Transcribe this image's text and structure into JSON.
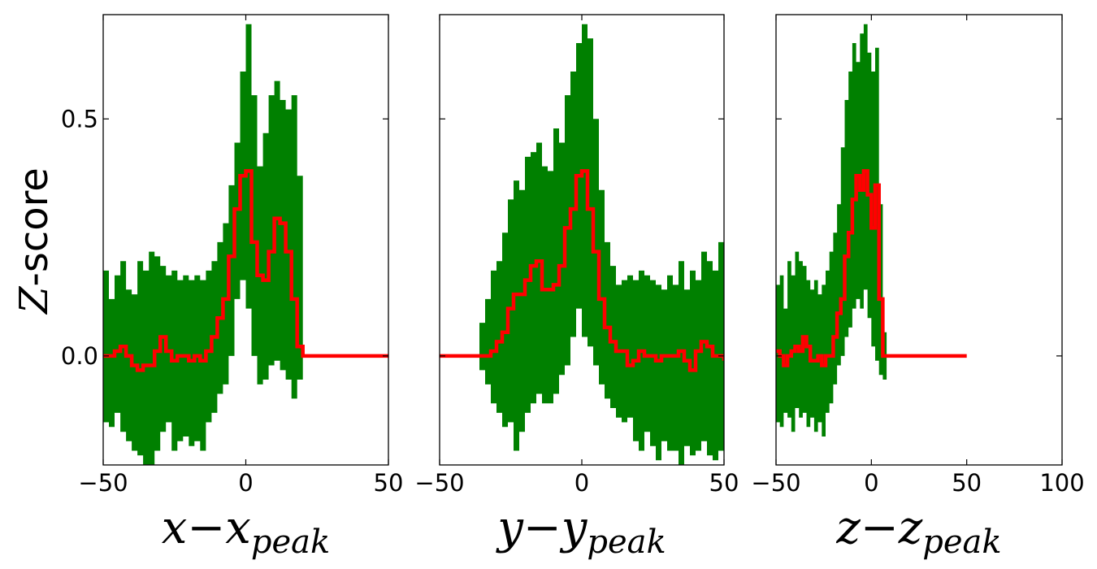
{
  "chart_data": {
    "type": "area",
    "y_axis": {
      "label_var": "Z",
      "label_rest": "-score",
      "ylim": [
        -0.23,
        0.72
      ],
      "ticks": [
        0.0,
        0.5
      ],
      "tick_labels": [
        "0.0",
        "0.5"
      ]
    },
    "colors": {
      "band": "#008000",
      "mean": "#ff0000"
    },
    "panels": [
      {
        "xlabel_var": "x−x",
        "xlabel_sub": "peak",
        "xlim": [
          -50,
          50
        ],
        "xticks": [
          -50,
          0,
          50
        ],
        "xtick_labels": [
          "−50",
          "0",
          "50"
        ],
        "x": [
          -50,
          -48,
          -46,
          -44,
          -42,
          -40,
          -38,
          -36,
          -34,
          -32,
          -30,
          -28,
          -26,
          -24,
          -22,
          -20,
          -18,
          -16,
          -14,
          -12,
          -10,
          -8,
          -6,
          -4,
          -2,
          0,
          2,
          4,
          6,
          8,
          10,
          12,
          14,
          16,
          18,
          20,
          50
        ],
        "mean": [
          0.0,
          0.0,
          0.01,
          0.02,
          0.0,
          -0.02,
          -0.03,
          -0.02,
          -0.02,
          0.01,
          0.04,
          0.01,
          -0.01,
          0.0,
          0.0,
          -0.01,
          0.0,
          -0.01,
          0.01,
          0.04,
          0.08,
          0.12,
          0.21,
          0.31,
          0.38,
          0.39,
          0.24,
          0.17,
          0.16,
          0.22,
          0.29,
          0.28,
          0.22,
          0.12,
          0.02,
          0.0,
          0.0
        ],
        "upper": [
          0.18,
          0.12,
          0.17,
          0.2,
          0.14,
          0.13,
          0.2,
          0.18,
          0.22,
          0.21,
          0.19,
          0.17,
          0.18,
          0.16,
          0.17,
          0.16,
          0.17,
          0.16,
          0.18,
          0.2,
          0.24,
          0.28,
          0.36,
          0.45,
          0.6,
          0.7,
          0.55,
          0.4,
          0.47,
          0.55,
          0.58,
          0.54,
          0.52,
          0.55,
          0.38,
          0.0,
          0.0
        ],
        "lower": [
          -0.14,
          -0.15,
          -0.12,
          -0.16,
          -0.18,
          -0.2,
          -0.21,
          -0.23,
          -0.25,
          -0.2,
          -0.16,
          -0.14,
          -0.2,
          -0.18,
          -0.17,
          -0.19,
          -0.18,
          -0.2,
          -0.14,
          -0.12,
          -0.08,
          -0.06,
          0.0,
          0.12,
          0.16,
          0.1,
          0.0,
          -0.06,
          -0.05,
          -0.02,
          -0.01,
          -0.03,
          -0.05,
          -0.09,
          -0.05,
          0.0,
          0.0
        ]
      },
      {
        "xlabel_var": "y−y",
        "xlabel_sub": "peak",
        "xlim": [
          -50,
          50
        ],
        "xticks": [
          -50,
          0,
          50
        ],
        "xtick_labels": [
          "−50",
          "0",
          "50"
        ],
        "x": [
          -50,
          -38,
          -36,
          -34,
          -32,
          -30,
          -28,
          -26,
          -24,
          -22,
          -20,
          -18,
          -16,
          -14,
          -12,
          -10,
          -8,
          -6,
          -4,
          -2,
          0,
          2,
          4,
          6,
          8,
          10,
          12,
          14,
          16,
          18,
          20,
          22,
          24,
          26,
          28,
          30,
          32,
          34,
          36,
          38,
          40,
          42,
          44,
          46,
          48,
          50
        ],
        "mean": [
          0.0,
          0.0,
          0.0,
          0.0,
          0.01,
          0.03,
          0.05,
          0.1,
          0.13,
          0.13,
          0.16,
          0.19,
          0.2,
          0.14,
          0.14,
          0.15,
          0.19,
          0.27,
          0.31,
          0.38,
          0.39,
          0.31,
          0.22,
          0.12,
          0.06,
          0.03,
          0.01,
          0.01,
          -0.02,
          -0.01,
          0.01,
          0.0,
          0.0,
          -0.01,
          0.0,
          0.0,
          0.0,
          0.01,
          -0.01,
          -0.03,
          0.01,
          0.03,
          0.02,
          0.0,
          0.0,
          -0.01
        ],
        "upper": [
          0.0,
          0.0,
          0.07,
          0.12,
          0.18,
          0.2,
          0.26,
          0.33,
          0.37,
          0.35,
          0.42,
          0.43,
          0.45,
          0.4,
          0.39,
          0.48,
          0.45,
          0.55,
          0.6,
          0.66,
          0.7,
          0.67,
          0.5,
          0.35,
          0.24,
          0.19,
          0.15,
          0.16,
          0.17,
          0.16,
          0.18,
          0.17,
          0.16,
          0.15,
          0.14,
          0.17,
          0.15,
          0.2,
          0.14,
          0.18,
          0.16,
          0.22,
          0.2,
          0.18,
          0.24,
          0.22
        ],
        "lower": [
          0.0,
          0.0,
          -0.03,
          -0.06,
          -0.1,
          -0.12,
          -0.15,
          -0.14,
          -0.2,
          -0.16,
          -0.12,
          -0.1,
          -0.08,
          -0.1,
          -0.1,
          -0.08,
          -0.04,
          -0.02,
          0.04,
          0.1,
          0.04,
          0.02,
          -0.02,
          -0.06,
          -0.09,
          -0.11,
          -0.13,
          -0.14,
          -0.13,
          -0.18,
          -0.2,
          -0.16,
          -0.19,
          -0.22,
          -0.18,
          -0.2,
          -0.2,
          -0.23,
          -0.19,
          -0.21,
          -0.2,
          -0.18,
          -0.21,
          -0.22,
          -0.2,
          -0.21
        ]
      },
      {
        "xlabel_var": "z−z",
        "xlabel_sub": "peak",
        "xlim": [
          -50,
          100
        ],
        "xticks": [
          -50,
          0,
          50,
          100
        ],
        "xtick_labels": [
          "−50",
          "0",
          "50",
          "100"
        ],
        "x": [
          -50,
          -48,
          -46,
          -44,
          -42,
          -40,
          -38,
          -36,
          -34,
          -32,
          -30,
          -28,
          -26,
          -24,
          -22,
          -20,
          -18,
          -16,
          -14,
          -12,
          -10,
          -8,
          -6,
          -4,
          -2,
          0,
          2,
          4,
          6,
          8,
          10,
          12,
          14,
          16,
          50
        ],
        "mean": [
          0.01,
          0.0,
          -0.02,
          0.0,
          0.01,
          0.02,
          0.01,
          0.04,
          0.02,
          -0.01,
          -0.01,
          0.0,
          -0.02,
          0.0,
          0.0,
          0.04,
          0.09,
          0.12,
          0.21,
          0.26,
          0.33,
          0.38,
          0.35,
          0.39,
          0.34,
          0.27,
          0.36,
          0.12,
          0.0,
          0.0,
          0.0,
          0.0,
          0.0,
          0.0,
          0.0
        ],
        "upper": [
          0.15,
          0.17,
          0.1,
          0.2,
          0.17,
          0.22,
          0.2,
          0.19,
          0.16,
          0.14,
          0.16,
          0.13,
          0.15,
          0.18,
          0.22,
          0.26,
          0.32,
          0.44,
          0.54,
          0.6,
          0.66,
          0.62,
          0.68,
          0.7,
          0.64,
          0.6,
          0.65,
          0.32,
          0.05,
          0.0,
          0.0,
          0.0,
          0.0,
          0.0,
          0.0
        ],
        "lower": [
          -0.14,
          -0.15,
          -0.12,
          -0.13,
          -0.16,
          -0.11,
          -0.13,
          -0.12,
          -0.15,
          -0.13,
          -0.16,
          -0.14,
          -0.17,
          -0.12,
          -0.1,
          -0.06,
          -0.02,
          0.0,
          0.04,
          0.06,
          0.1,
          0.12,
          0.1,
          0.14,
          0.08,
          0.02,
          -0.01,
          -0.04,
          -0.05,
          0.0,
          0.0,
          0.0,
          0.0,
          0.0,
          0.0
        ]
      }
    ]
  }
}
